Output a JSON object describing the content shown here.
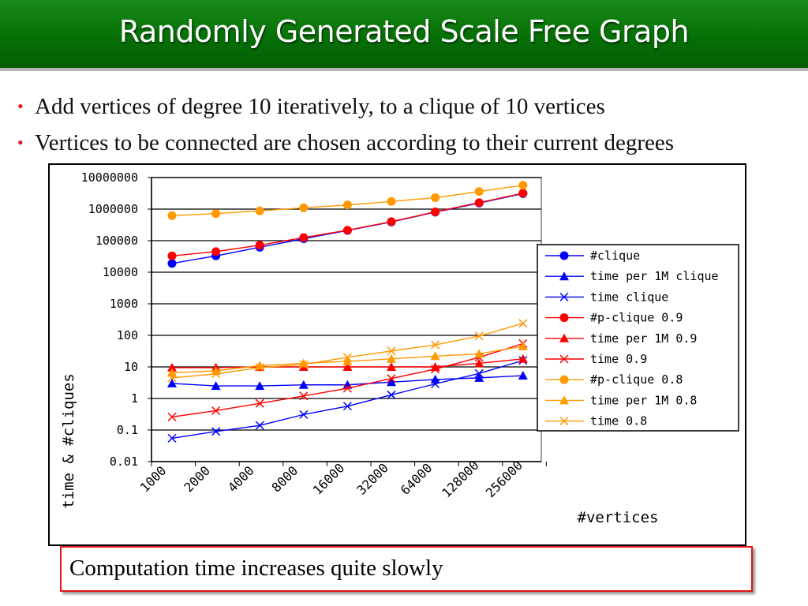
{
  "title": "Randomly Generated Scale Free Graph",
  "bullets": [
    "Add vertices of degree 10 iteratively, to a clique of 10 vertices",
    "Vertices to be connected are chosen according to their current degrees"
  ],
  "callout": "Computation time increases quite slowly",
  "colors": {
    "title_bg": "#067006",
    "bullet": "#e31b1b",
    "callout_border": "#e0151b"
  },
  "chart_data": {
    "type": "line",
    "yscale": "log",
    "ylim": [
      0.01,
      10000000
    ],
    "grid": "horizontal major gridlines",
    "legend_position": "right",
    "xlabel": "#vertices",
    "ylabel": "time & #cliques",
    "y_ticks": [
      "0.01",
      "0.1",
      "1",
      "10",
      "100",
      "1000",
      "10000",
      "100000",
      "1000000",
      "10000000"
    ],
    "categories": [
      "1000",
      "2000",
      "4000",
      "8000",
      "16000",
      "32000",
      "64000",
      "128000",
      "256000"
    ],
    "series": [
      {
        "name": "#clique",
        "color": "#0000ff",
        "marker": "circle",
        "values": [
          19000,
          33000,
          62000,
          115000,
          210000,
          390000,
          800000,
          1550000,
          3100000
        ]
      },
      {
        "name": "time per 1M clique",
        "color": "#0000ff",
        "marker": "triangle",
        "values": [
          3.0,
          2.5,
          2.5,
          2.7,
          2.7,
          3.3,
          4.0,
          4.5,
          5.3
        ]
      },
      {
        "name": "time clique",
        "color": "#0000ff",
        "marker": "x",
        "values": [
          0.055,
          0.09,
          0.14,
          0.31,
          0.57,
          1.3,
          2.9,
          6.2,
          16
        ]
      },
      {
        "name": "#p-clique 0.9",
        "color": "#ff0000",
        "marker": "circle",
        "values": [
          33000,
          45000,
          72000,
          125000,
          215000,
          400000,
          820000,
          1600000,
          3200000
        ]
      },
      {
        "name": "time per 1M 0.9",
        "color": "#ff0000",
        "marker": "triangle",
        "values": [
          9.5,
          9.5,
          10,
          10,
          10,
          10,
          10,
          13,
          18
        ]
      },
      {
        "name": "time 0.9",
        "color": "#ff0000",
        "marker": "x",
        "values": [
          0.26,
          0.41,
          0.7,
          1.2,
          2.1,
          4.3,
          8.5,
          20,
          55
        ]
      },
      {
        "name": "#p-clique 0.8",
        "color": "#ff9900",
        "marker": "circle",
        "values": [
          620000,
          720000,
          880000,
          1100000,
          1350000,
          1750000,
          2300000,
          3600000,
          5700000
        ]
      },
      {
        "name": "time per 1M 0.8",
        "color": "#ff9900",
        "marker": "triangle",
        "values": [
          6.5,
          7.5,
          11,
          13,
          15,
          18,
          22,
          26,
          45
        ]
      },
      {
        "name": "time 0.8",
        "color": "#ff9900",
        "marker": "x",
        "values": [
          4.5,
          6.0,
          9.5,
          12,
          20,
          32,
          50,
          95,
          240
        ]
      }
    ]
  }
}
